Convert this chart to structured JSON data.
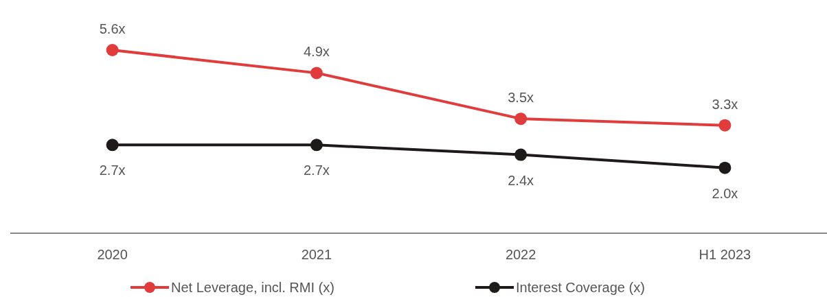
{
  "chart_data": {
    "type": "line",
    "categories": [
      "2020",
      "2021",
      "2022",
      "H1 2023"
    ],
    "series": [
      {
        "name": "Net Leverage, incl. RMI (x)",
        "color": "#e03c3c",
        "values": [
          5.6,
          4.9,
          3.5,
          3.3
        ],
        "value_labels": [
          "5.6x",
          "4.9x",
          "3.5x",
          "3.3x"
        ]
      },
      {
        "name": "Interest Coverage (x)",
        "color": "#1e1a1a",
        "values": [
          2.7,
          2.7,
          2.4,
          2.0
        ],
        "value_labels": [
          "2.7x",
          "2.7x",
          "2.4x",
          "2.0x"
        ]
      }
    ],
    "tick_labels": "x",
    "legend": "bottom",
    "marker": "circle"
  }
}
